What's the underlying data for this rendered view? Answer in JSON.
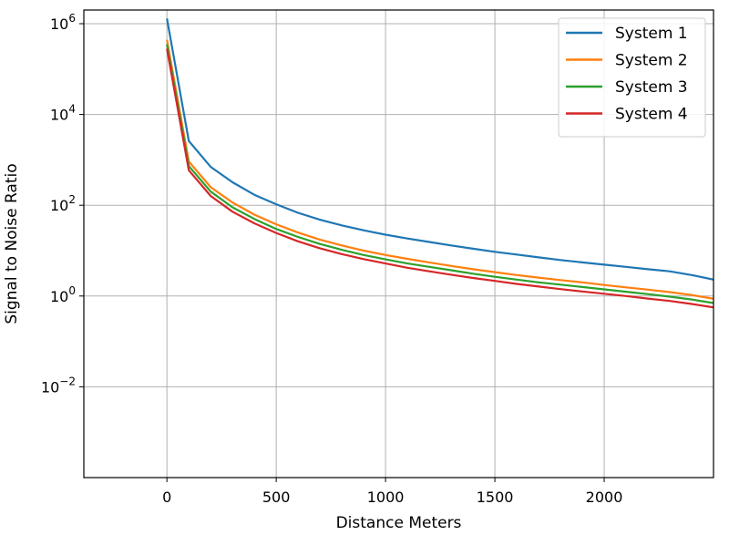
{
  "chart_data": {
    "type": "line",
    "xlabel": "Distance Meters",
    "ylabel": "Signal to Noise Ratio",
    "xlim": [
      -380,
      2500
    ],
    "ylim": [
      0.0001,
      2000000
    ],
    "y_scale": "log",
    "x_ticks": [
      0,
      500,
      1000,
      1500,
      2000
    ],
    "x_tick_labels": [
      "0",
      "500",
      "1000",
      "1500",
      "2000"
    ],
    "y_ticks": [
      0.01,
      1,
      100,
      10000,
      1000000
    ],
    "y_tick_labels": [
      {
        "base": "10",
        "exp": "−2"
      },
      {
        "base": "10",
        "exp": "0"
      },
      {
        "base": "10",
        "exp": "2"
      },
      {
        "base": "10",
        "exp": "4"
      },
      {
        "base": "10",
        "exp": "6"
      }
    ],
    "grid": true,
    "legend_position": "top-right",
    "x": [
      0,
      100,
      200,
      300,
      400,
      500,
      600,
      700,
      800,
      900,
      1000,
      1100,
      1200,
      1300,
      1400,
      1500,
      1600,
      1700,
      1800,
      1900,
      2000,
      2100,
      2200,
      2300,
      2400,
      2500
    ],
    "series": [
      {
        "name": "System 1",
        "color": "#1f77b4",
        "values": [
          1300000,
          2600,
          700,
          320,
          170,
          105,
          68,
          48,
          36,
          28,
          22.5,
          18.5,
          15.5,
          13,
          11,
          9.4,
          8.2,
          7.1,
          6.2,
          5.5,
          4.9,
          4.4,
          3.9,
          3.5,
          2.9,
          2.3
        ]
      },
      {
        "name": "System 2",
        "color": "#ff7f0e",
        "values": [
          440000,
          920,
          250,
          115,
          62,
          38,
          25,
          17.5,
          13,
          10,
          8,
          6.6,
          5.5,
          4.6,
          3.9,
          3.35,
          2.9,
          2.55,
          2.25,
          2,
          1.75,
          1.55,
          1.38,
          1.22,
          1.05,
          0.87
        ]
      },
      {
        "name": "System 3",
        "color": "#2ca02c",
        "values": [
          350000,
          730,
          200,
          90,
          50,
          30,
          20,
          14,
          10.4,
          8,
          6.4,
          5.2,
          4.4,
          3.7,
          3.1,
          2.65,
          2.3,
          2.0,
          1.78,
          1.58,
          1.4,
          1.24,
          1.1,
          0.97,
          0.84,
          0.7
        ]
      },
      {
        "name": "System 4",
        "color": "#d62728",
        "values": [
          280000,
          590,
          160,
          72,
          40,
          24.5,
          16,
          11.3,
          8.4,
          6.5,
          5.2,
          4.2,
          3.5,
          2.95,
          2.5,
          2.15,
          1.85,
          1.62,
          1.42,
          1.26,
          1.12,
          1.0,
          0.88,
          0.78,
          0.67,
          0.56
        ]
      }
    ]
  }
}
